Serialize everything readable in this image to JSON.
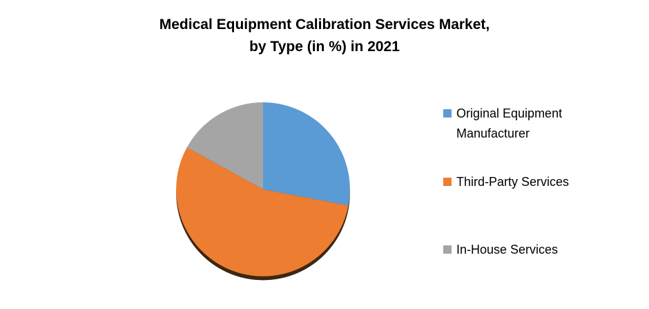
{
  "title": {
    "line1": "Medical Equipment Calibration Services Market,",
    "line2": "by Type (in %) in 2021"
  },
  "chart_data": {
    "type": "pie",
    "title": "Medical Equipment Calibration Services Market, by Type (in %) in 2021",
    "unit": "%",
    "year": "2021",
    "start_angle_deg": 0,
    "direction": "clockwise",
    "legend_position": "right",
    "depth_shadow_color": "#3E2712",
    "slices": [
      {
        "label": "Original Equipment Manufacturer",
        "value": 28,
        "color": "#5B9BD5"
      },
      {
        "label": "Third-Party Services",
        "value": 55,
        "color": "#ED7D31"
      },
      {
        "label": "In-House Services",
        "value": 17,
        "color": "#A5A5A5"
      }
    ]
  }
}
